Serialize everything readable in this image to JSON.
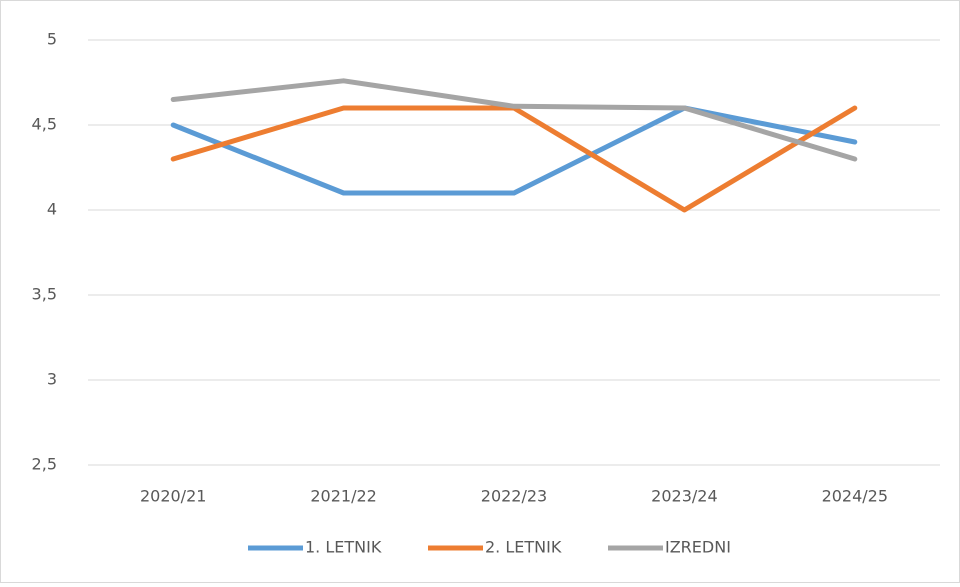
{
  "chart_data": {
    "type": "line",
    "categories": [
      "2020/21",
      "2021/22",
      "2022/23",
      "2023/24",
      "2024/25"
    ],
    "series": [
      {
        "name": "1. LETNIK",
        "color": "#5b9bd5",
        "values": [
          4.5,
          4.1,
          4.1,
          4.6,
          4.4
        ]
      },
      {
        "name": "2. LETNIK",
        "color": "#ed7d31",
        "values": [
          4.3,
          4.6,
          4.6,
          4.0,
          4.6
        ]
      },
      {
        "name": "IZREDNI",
        "color": "#a5a5a5",
        "values": [
          4.65,
          4.76,
          4.61,
          4.6,
          4.3
        ]
      }
    ],
    "ylim": [
      2.5,
      5
    ],
    "yticks": [
      {
        "value": 2.5,
        "label": "2,5"
      },
      3,
      {
        "value": 3.5,
        "label": "3,5"
      },
      4,
      {
        "value": 4.5,
        "label": "4,5"
      },
      5
    ],
    "grid": true,
    "legend": "bottom"
  }
}
